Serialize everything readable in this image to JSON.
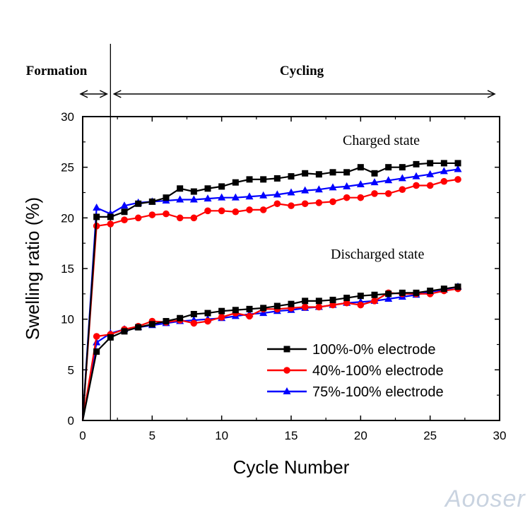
{
  "chart_data": {
    "type": "line",
    "xlabel": "Cycle Number",
    "ylabel": "Swelling ratio (%)",
    "xlim": [
      0,
      30
    ],
    "ylim": [
      0,
      30
    ],
    "xticks": [
      0,
      5,
      10,
      15,
      20,
      25,
      30
    ],
    "yticks": [
      0,
      5,
      10,
      15,
      20,
      25,
      30
    ],
    "phase_divider_x": 2,
    "phases": [
      {
        "label": "Formation",
        "from": 0,
        "to": 2
      },
      {
        "label": "Cycling",
        "from": 2,
        "to": 30
      }
    ],
    "annotations": {
      "charged": "Charged state",
      "discharged": "Discharged state"
    },
    "legend_position": "bottom-right",
    "series": [
      {
        "name": "100%-0% electrode",
        "color": "#000000",
        "marker": "square",
        "charged": {
          "x": [
            0,
            1,
            2,
            3,
            4,
            5,
            6,
            7,
            8,
            9,
            10,
            11,
            12,
            13,
            14,
            15,
            16,
            17,
            18,
            19,
            20,
            21,
            22,
            23,
            24,
            25,
            26,
            27
          ],
          "y": [
            0,
            20.1,
            20.1,
            20.6,
            21.4,
            21.6,
            22.0,
            22.9,
            22.6,
            22.9,
            23.1,
            23.5,
            23.8,
            23.8,
            23.9,
            24.1,
            24.4,
            24.3,
            24.5,
            24.5,
            25.0,
            24.4,
            25.0,
            25.0,
            25.3,
            25.4,
            25.4,
            25.4
          ]
        },
        "discharged": {
          "x": [
            0,
            1,
            2,
            3,
            4,
            5,
            6,
            7,
            8,
            9,
            10,
            11,
            12,
            13,
            14,
            15,
            16,
            17,
            18,
            19,
            20,
            21,
            22,
            23,
            24,
            25,
            26,
            27
          ],
          "y": [
            0,
            6.8,
            8.2,
            8.8,
            9.2,
            9.5,
            9.8,
            10.1,
            10.5,
            10.6,
            10.8,
            10.9,
            11.0,
            11.1,
            11.3,
            11.5,
            11.8,
            11.8,
            11.9,
            12.1,
            12.3,
            12.4,
            12.5,
            12.6,
            12.6,
            12.8,
            13.0,
            13.2
          ]
        }
      },
      {
        "name": "40%-100% electrode",
        "color": "#ff0000",
        "marker": "circle",
        "charged": {
          "x": [
            0,
            1,
            2,
            3,
            4,
            5,
            6,
            7,
            8,
            9,
            10,
            11,
            12,
            13,
            14,
            15,
            16,
            17,
            18,
            19,
            20,
            21,
            22,
            23,
            24,
            25,
            26,
            27
          ],
          "y": [
            0,
            19.2,
            19.4,
            19.8,
            20.0,
            20.3,
            20.4,
            20.0,
            20.0,
            20.7,
            20.7,
            20.6,
            20.8,
            20.8,
            21.4,
            21.2,
            21.4,
            21.5,
            21.6,
            22.0,
            22.0,
            22.4,
            22.4,
            22.8,
            23.2,
            23.2,
            23.6,
            23.8
          ]
        },
        "discharged": {
          "x": [
            0,
            1,
            2,
            3,
            4,
            5,
            6,
            7,
            8,
            9,
            10,
            11,
            12,
            13,
            14,
            15,
            16,
            17,
            18,
            19,
            20,
            21,
            22,
            23,
            24,
            25,
            26,
            27
          ],
          "y": [
            0,
            8.3,
            8.5,
            9.0,
            9.3,
            9.8,
            9.7,
            9.9,
            9.6,
            9.8,
            10.2,
            10.6,
            10.3,
            11.0,
            11.0,
            11.1,
            11.2,
            11.2,
            11.4,
            11.6,
            11.4,
            11.8,
            12.6,
            12.5,
            12.5,
            12.5,
            12.8,
            13.0
          ]
        }
      },
      {
        "name": "75%-100% electrode",
        "color": "#0000ff",
        "marker": "triangle",
        "charged": {
          "x": [
            0,
            1,
            2,
            3,
            4,
            5,
            6,
            7,
            8,
            9,
            10,
            11,
            12,
            13,
            14,
            15,
            16,
            17,
            18,
            19,
            20,
            21,
            22,
            23,
            24,
            25,
            26,
            27
          ],
          "y": [
            0,
            21.0,
            20.4,
            21.2,
            21.5,
            21.6,
            21.7,
            21.8,
            21.8,
            21.9,
            22.0,
            22.0,
            22.1,
            22.2,
            22.3,
            22.5,
            22.7,
            22.8,
            23.0,
            23.1,
            23.3,
            23.5,
            23.7,
            23.9,
            24.1,
            24.3,
            24.6,
            24.8
          ]
        },
        "discharged": {
          "x": [
            0,
            1,
            2,
            3,
            4,
            5,
            6,
            7,
            8,
            9,
            10,
            11,
            12,
            13,
            14,
            15,
            16,
            17,
            18,
            19,
            20,
            21,
            22,
            23,
            24,
            25,
            26,
            27
          ],
          "y": [
            0,
            7.7,
            8.6,
            9.0,
            9.2,
            9.4,
            9.6,
            9.8,
            9.9,
            10.0,
            10.1,
            10.3,
            10.5,
            10.6,
            10.8,
            10.9,
            11.1,
            11.2,
            11.4,
            11.6,
            11.7,
            11.8,
            12.0,
            12.2,
            12.4,
            12.7,
            12.9,
            13.2
          ]
        }
      }
    ]
  },
  "watermark": "Aooser"
}
